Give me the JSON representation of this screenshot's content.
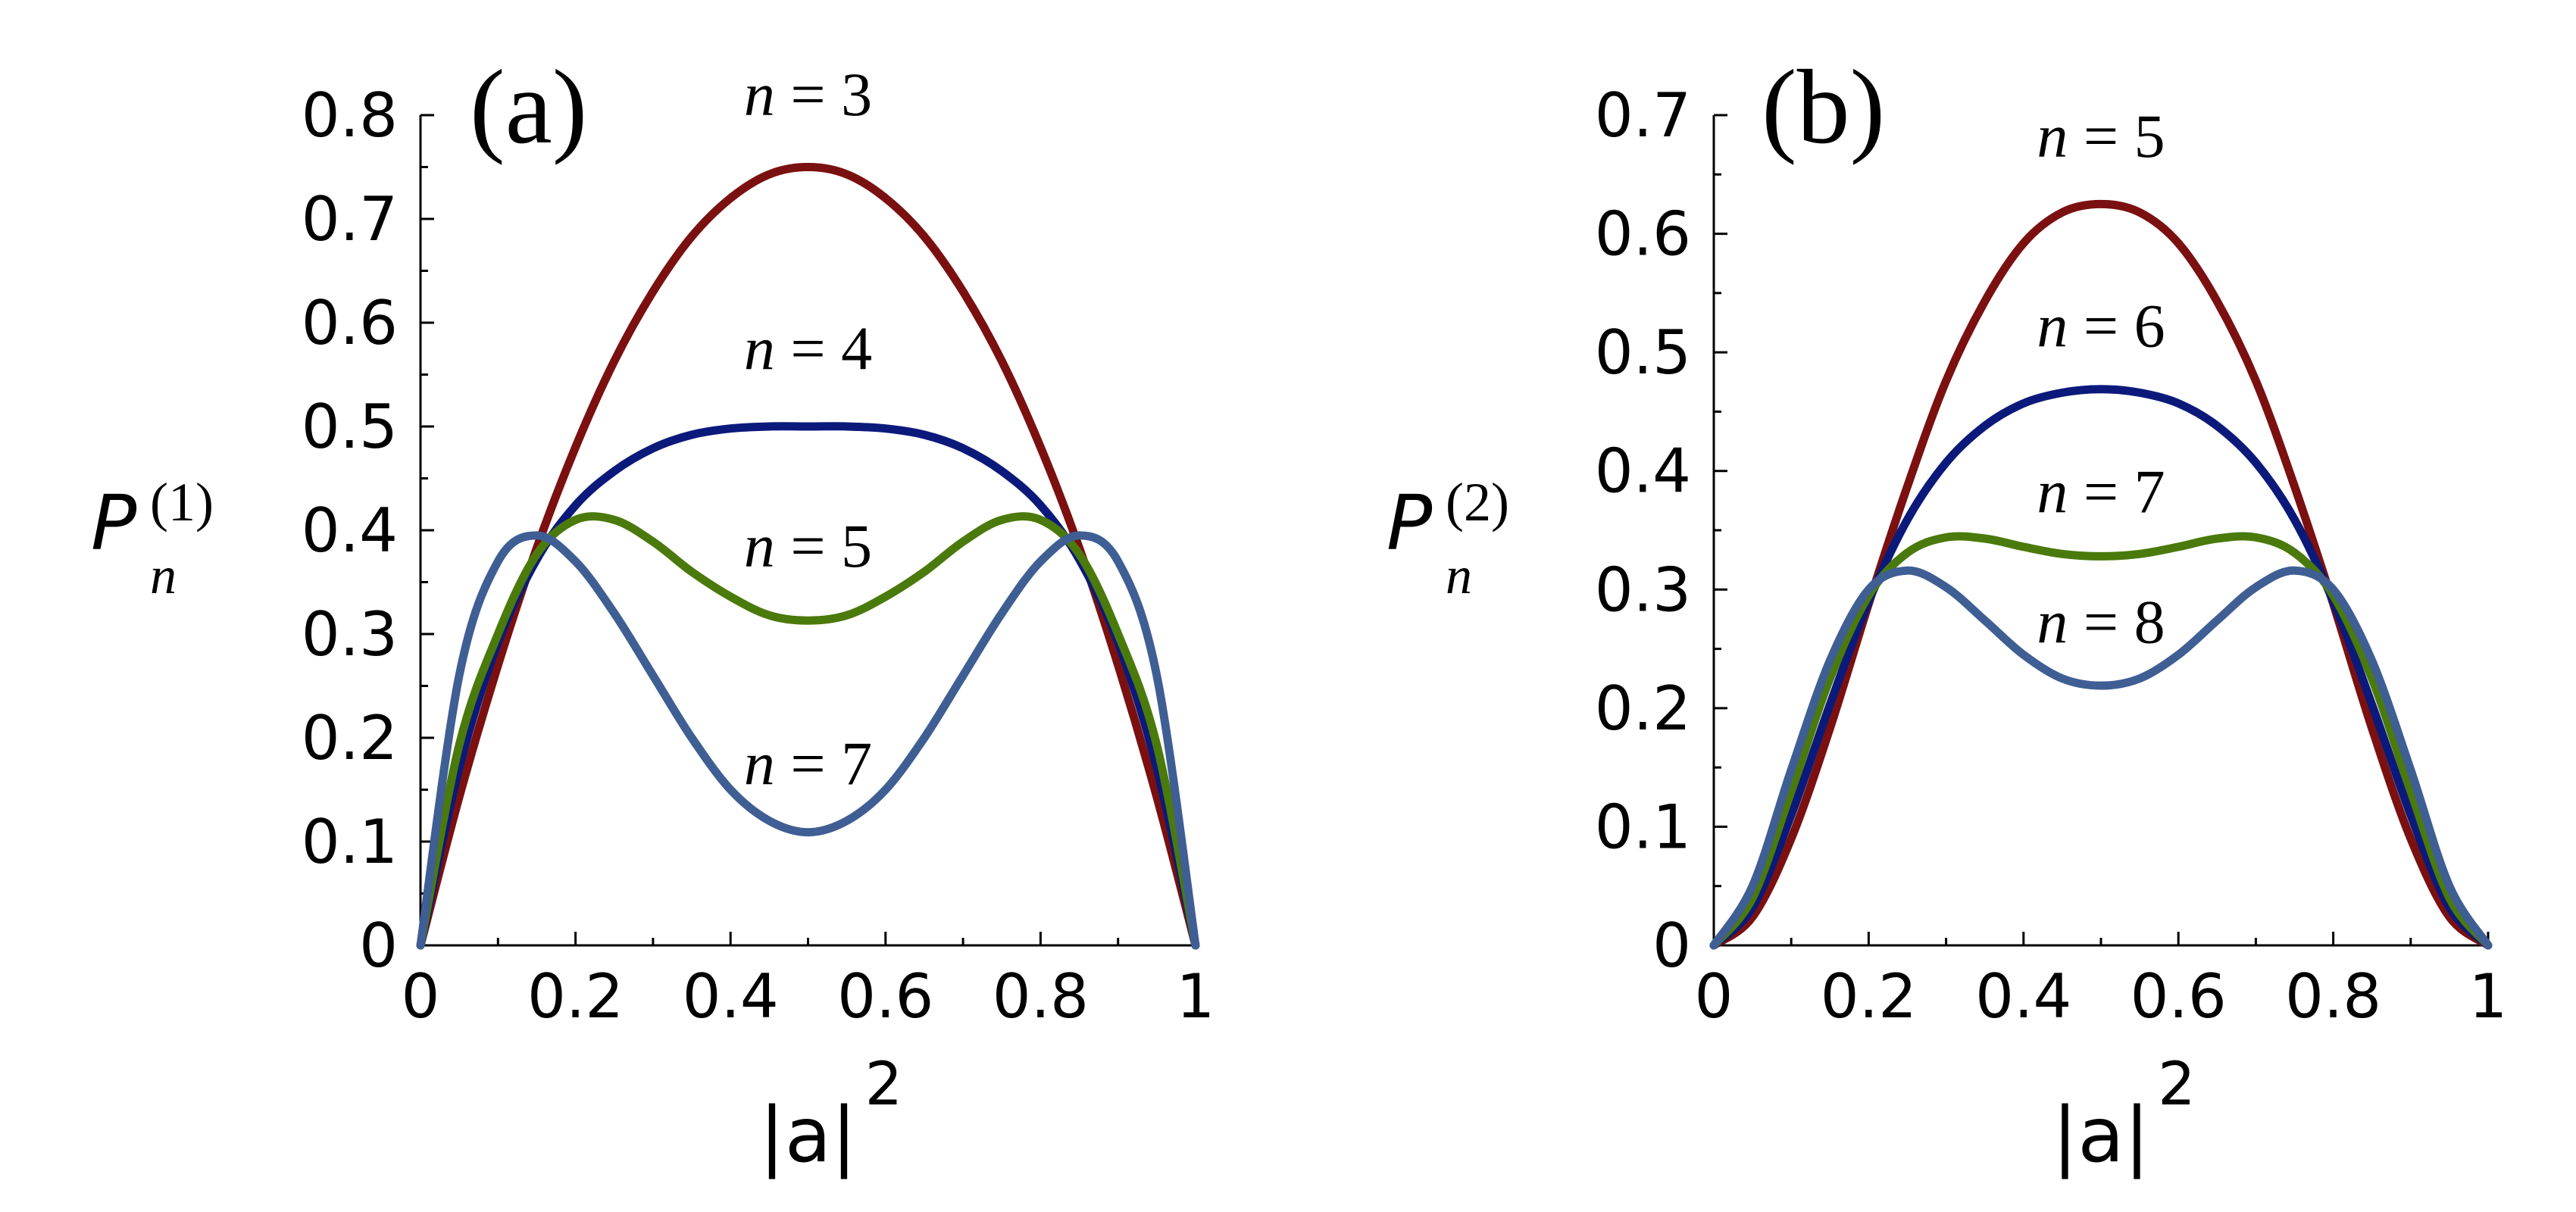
{
  "chart_data": [
    {
      "type": "line",
      "panel_label": "(a)",
      "xlabel": "|a|",
      "xlabel_sup": "2",
      "ylabel": "P",
      "ylabel_sub": "n",
      "ylabel_sup": "(1)",
      "xlim": [
        0,
        1
      ],
      "ylim": [
        0,
        0.8
      ],
      "xticks": [
        "0",
        "0.2",
        "0.4",
        "0.6",
        "0.8",
        "1"
      ],
      "yticks": [
        "0",
        "0.1",
        "0.2",
        "0.3",
        "0.4",
        "0.5",
        "0.6",
        "0.7",
        "0.8"
      ],
      "series": [
        {
          "name": "n = 3",
          "color": "#7b1010",
          "label_x": 0.5,
          "label_y": 0.8,
          "x": [
            0,
            0.05,
            0.1,
            0.15,
            0.2,
            0.25,
            0.3,
            0.35,
            0.4,
            0.45,
            0.5,
            0.55,
            0.6,
            0.65,
            0.7,
            0.75,
            0.8,
            0.85,
            0.9,
            0.95,
            1
          ],
          "y": [
            0,
            0.143,
            0.27,
            0.383,
            0.48,
            0.563,
            0.63,
            0.683,
            0.72,
            0.743,
            0.75,
            0.743,
            0.72,
            0.683,
            0.63,
            0.563,
            0.48,
            0.383,
            0.27,
            0.143,
            0
          ]
        },
        {
          "name": "n = 4",
          "color": "#0b1a7a",
          "label_x": 0.5,
          "label_y": 0.555,
          "x": [
            0,
            0.05,
            0.1,
            0.15,
            0.2,
            0.25,
            0.3,
            0.35,
            0.4,
            0.45,
            0.5,
            0.55,
            0.6,
            0.65,
            0.7,
            0.75,
            0.8,
            0.85,
            0.9,
            0.95,
            1
          ],
          "y": [
            0,
            0.171,
            0.292,
            0.372,
            0.424,
            0.457,
            0.479,
            0.492,
            0.498,
            0.5,
            0.5,
            0.5,
            0.498,
            0.492,
            0.479,
            0.457,
            0.424,
            0.372,
            0.292,
            0.171,
            0
          ]
        },
        {
          "name": "n = 5",
          "color": "#4a7a0c",
          "label_x": 0.5,
          "label_y": 0.365,
          "x": [
            0,
            0.05,
            0.1,
            0.15,
            0.2,
            0.25,
            0.3,
            0.35,
            0.4,
            0.45,
            0.5,
            0.55,
            0.6,
            0.65,
            0.7,
            0.75,
            0.8,
            0.85,
            0.9,
            0.95,
            1
          ],
          "y": [
            0,
            0.193,
            0.3,
            0.377,
            0.41,
            0.41,
            0.389,
            0.36,
            0.336,
            0.318,
            0.313,
            0.318,
            0.336,
            0.36,
            0.389,
            0.41,
            0.41,
            0.377,
            0.3,
            0.193,
            0
          ]
        },
        {
          "name": "n = 7",
          "color": "#3f5e94",
          "label_x": 0.5,
          "label_y": 0.155,
          "x": [
            0,
            0.05,
            0.1,
            0.15,
            0.2,
            0.25,
            0.3,
            0.35,
            0.4,
            0.45,
            0.5,
            0.55,
            0.6,
            0.65,
            0.7,
            0.75,
            0.8,
            0.85,
            0.9,
            0.95,
            1
          ],
          "y": [
            0,
            0.26,
            0.37,
            0.395,
            0.37,
            0.32,
            0.26,
            0.2,
            0.15,
            0.12,
            0.109,
            0.12,
            0.15,
            0.2,
            0.26,
            0.32,
            0.37,
            0.395,
            0.37,
            0.26,
            0
          ]
        }
      ]
    },
    {
      "type": "line",
      "panel_label": "(b)",
      "xlabel": "|a|",
      "xlabel_sup": "2",
      "ylabel": "P",
      "ylabel_sub": "n",
      "ylabel_sup": "(2)",
      "xlim": [
        0,
        1
      ],
      "ylim": [
        0,
        0.7
      ],
      "xticks": [
        "0",
        "0.2",
        "0.4",
        "0.6",
        "0.8",
        "1"
      ],
      "yticks": [
        "0",
        "0.1",
        "0.2",
        "0.3",
        "0.4",
        "0.5",
        "0.6",
        "0.7"
      ],
      "series": [
        {
          "name": "n = 5",
          "color": "#7b1010",
          "label_x": 0.5,
          "label_y": 0.665,
          "x": [
            0,
            0.05,
            0.1,
            0.15,
            0.2,
            0.25,
            0.3,
            0.35,
            0.4,
            0.45,
            0.5,
            0.55,
            0.6,
            0.65,
            0.7,
            0.75,
            0.8,
            0.85,
            0.9,
            0.95,
            1
          ],
          "y": [
            0,
            0.024,
            0.09,
            0.183,
            0.288,
            0.387,
            0.476,
            0.543,
            0.592,
            0.618,
            0.625,
            0.618,
            0.592,
            0.543,
            0.476,
            0.387,
            0.288,
            0.183,
            0.09,
            0.024,
            0
          ]
        },
        {
          "name": "n = 6",
          "color": "#0b1a7a",
          "label_x": 0.5,
          "label_y": 0.505,
          "x": [
            0,
            0.05,
            0.1,
            0.15,
            0.2,
            0.25,
            0.3,
            0.35,
            0.4,
            0.45,
            0.5,
            0.55,
            0.6,
            0.65,
            0.7,
            0.75,
            0.8,
            0.85,
            0.9,
            0.95,
            1
          ],
          "y": [
            0,
            0.032,
            0.11,
            0.203,
            0.29,
            0.359,
            0.407,
            0.438,
            0.457,
            0.466,
            0.469,
            0.466,
            0.457,
            0.438,
            0.407,
            0.359,
            0.29,
            0.203,
            0.11,
            0.032,
            0
          ]
        },
        {
          "name": "n = 7",
          "color": "#4a7a0c",
          "label_x": 0.5,
          "label_y": 0.365,
          "x": [
            0,
            0.05,
            0.1,
            0.15,
            0.2,
            0.25,
            0.3,
            0.35,
            0.4,
            0.45,
            0.5,
            0.55,
            0.6,
            0.65,
            0.7,
            0.75,
            0.8,
            0.85,
            0.9,
            0.95,
            1
          ],
          "y": [
            0,
            0.04,
            0.13,
            0.225,
            0.295,
            0.331,
            0.344,
            0.343,
            0.336,
            0.33,
            0.328,
            0.33,
            0.336,
            0.343,
            0.344,
            0.331,
            0.295,
            0.225,
            0.13,
            0.04,
            0
          ]
        },
        {
          "name": "n = 8",
          "color": "#3f5e94",
          "label_x": 0.5,
          "label_y": 0.255,
          "x": [
            0,
            0.05,
            0.1,
            0.15,
            0.2,
            0.25,
            0.3,
            0.35,
            0.4,
            0.45,
            0.5,
            0.55,
            0.6,
            0.65,
            0.7,
            0.75,
            0.8,
            0.85,
            0.9,
            0.95,
            1
          ],
          "y": [
            0,
            0.05,
            0.148,
            0.24,
            0.3,
            0.316,
            0.302,
            0.274,
            0.245,
            0.225,
            0.219,
            0.225,
            0.245,
            0.274,
            0.302,
            0.316,
            0.3,
            0.24,
            0.148,
            0.05,
            0
          ]
        }
      ]
    }
  ]
}
